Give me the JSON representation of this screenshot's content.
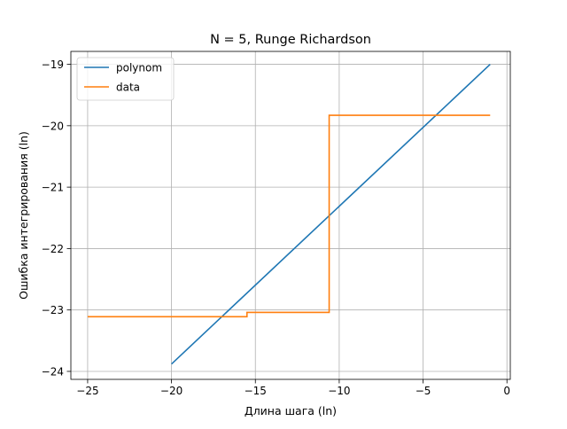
{
  "chart_data": {
    "type": "line",
    "title": "N = 5, Runge Richardson",
    "xlabel": "Длина шага (ln)",
    "ylabel": "Ошибка интегрирования (ln)",
    "xlim": [
      -26,
      0.2
    ],
    "ylim": [
      -24.13,
      -18.79
    ],
    "xticks": [
      -25,
      -20,
      -15,
      -10,
      -5,
      0
    ],
    "xtick_labels": [
      "−25",
      "−20",
      "−15",
      "−10",
      "−5",
      "0"
    ],
    "yticks": [
      -24,
      -23,
      -22,
      -21,
      -20,
      -19
    ],
    "ytick_labels": [
      "−24",
      "−23",
      "−22",
      "−21",
      "−20",
      "−19"
    ],
    "grid": true,
    "legend_position": "top-left",
    "series": [
      {
        "name": "polynom",
        "color": "#1f77b4",
        "x": [
          -20,
          -1
        ],
        "y": [
          -23.88,
          -19.0
        ]
      },
      {
        "name": "data",
        "color": "#ff7f0e",
        "x": [
          -25,
          -15.5,
          -15.5,
          -10.6,
          -10.6,
          -1
        ],
        "y": [
          -23.11,
          -23.11,
          -23.04,
          -23.04,
          -19.83,
          -19.83
        ]
      }
    ]
  }
}
